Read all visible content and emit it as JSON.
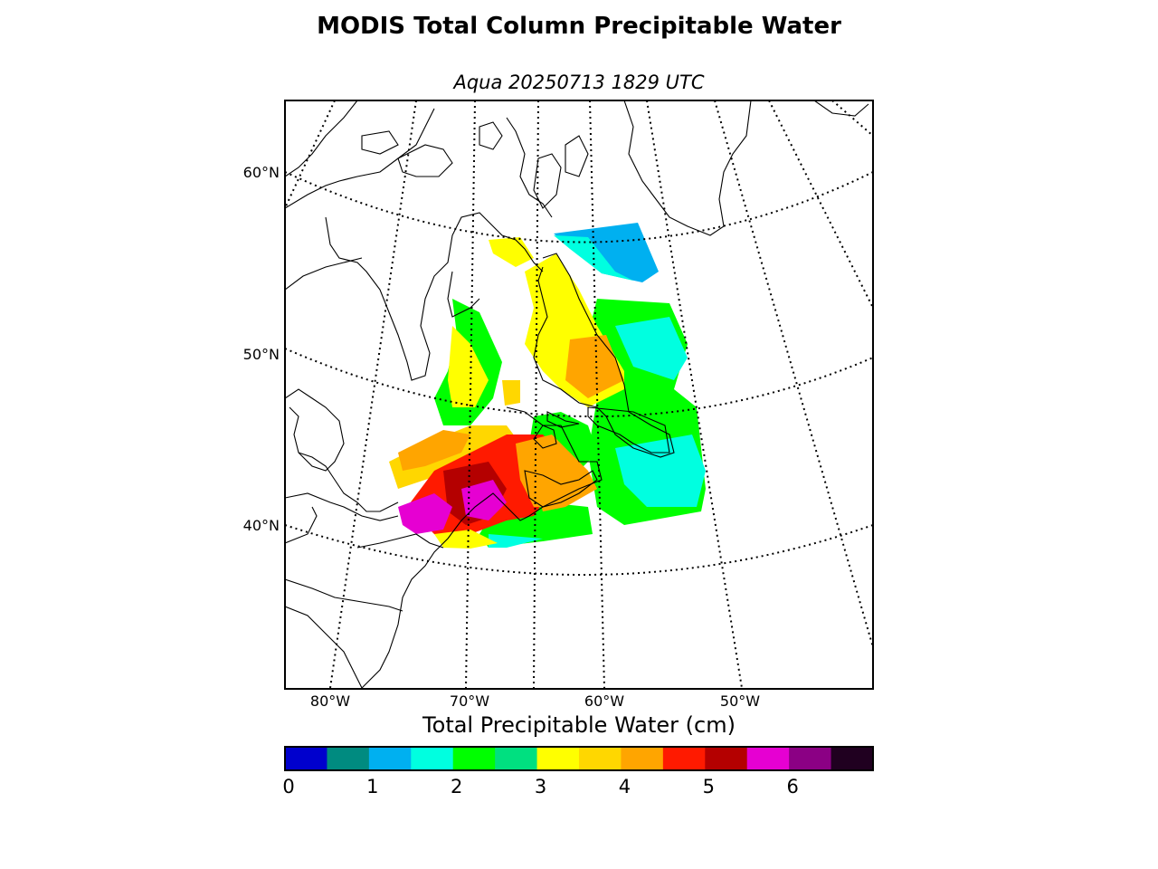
{
  "title": "MODIS Total Column Precipitable Water",
  "subtitle": "Aqua 20250713 1829 UTC",
  "map": {
    "lat_labels": [
      "60°N",
      "50°N",
      "40°N"
    ],
    "lon_labels": [
      "80°W",
      "70°W",
      "60°W",
      "50°W"
    ]
  },
  "colorbar": {
    "label": "Total Precipitable Water (cm)",
    "range": [
      0,
      7
    ],
    "tick_labels": [
      "0",
      "1",
      "2",
      "3",
      "4",
      "5",
      "6"
    ],
    "colors": [
      "#0000cd",
      "#008b80",
      "#00b0f0",
      "#00ffe0",
      "#00ff00",
      "#00e080",
      "#ffff00",
      "#ffd700",
      "#ffa500",
      "#ff1a00",
      "#b40000",
      "#e600d2",
      "#8b0084",
      "#200020"
    ]
  }
}
